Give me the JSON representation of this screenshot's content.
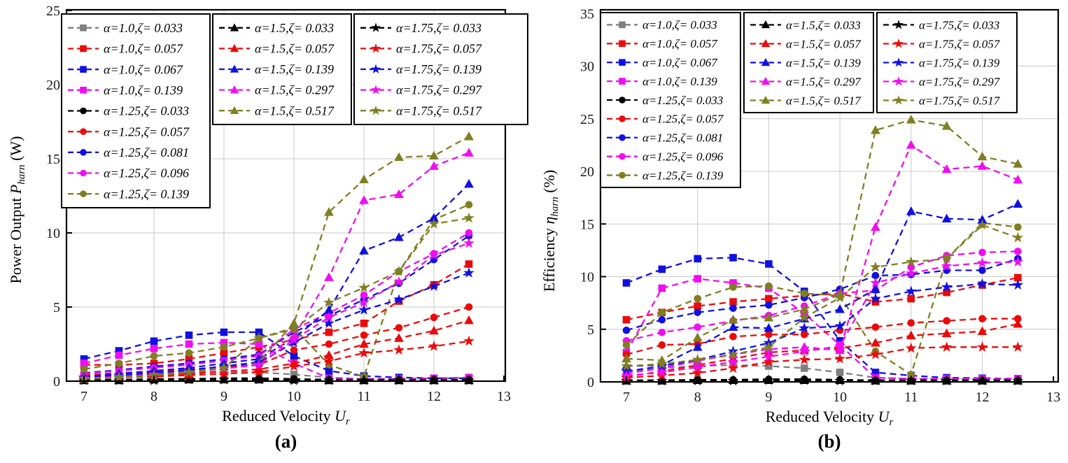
{
  "figure_name": "power-output-and-efficiency-vs-reduced-velocity",
  "chart_data": [
    {
      "type": "line",
      "caption": "(a)",
      "xlabel": {
        "text": "Reduced Velocity ",
        "symbol": "U",
        "subscript": "r",
        "unit": ""
      },
      "ylabel": {
        "text": "Power Output ",
        "symbol": "P",
        "subscript": "harn",
        "unit": " (W)"
      },
      "x_ticks": [
        7,
        8,
        9,
        10,
        11,
        12,
        13
      ],
      "y_ticks": [
        0,
        5,
        10,
        15,
        20,
        25
      ],
      "xlim": [
        6.75,
        13.02
      ],
      "ylim": [
        0,
        25
      ],
      "grid": "on",
      "legend_position": "top",
      "legend_groups": [
        [
          0,
          1,
          2,
          3,
          4,
          5,
          6,
          7,
          8
        ],
        [
          9,
          10,
          11,
          12,
          13
        ],
        [
          14,
          15,
          16,
          17,
          18
        ]
      ],
      "x": [
        7,
        7.5,
        8,
        8.5,
        9,
        9.5,
        10,
        10.5,
        11,
        11.5,
        12,
        12.5
      ],
      "series": [
        {
          "label": "α=1.0,ζ= 0.033",
          "color": "#7f7f7f",
          "marker": "square",
          "values": [
            0.3,
            0.45,
            0.55,
            0.6,
            0.65,
            0.6,
            0.45,
            0.25,
            0.15,
            0.15,
            0.15,
            0.15
          ]
        },
        {
          "label": "α=1.0,ζ= 0.057",
          "color": "#ea0b0b",
          "marker": "square",
          "values": [
            1.1,
            1.1,
            1.2,
            1.5,
            1.9,
            2.3,
            2.8,
            3.3,
            3.9,
            5.4,
            6.5,
            7.9
          ]
        },
        {
          "label": "α=1.0,ζ= 0.067",
          "color": "#1010e0",
          "marker": "square",
          "values": [
            1.5,
            2.05,
            2.7,
            3.1,
            3.3,
            3.3,
            1.7,
            0.7,
            0.35,
            0.25,
            0.2,
            0.2
          ]
        },
        {
          "label": "α=1.0,ζ= 0.139",
          "color": "#f00df0",
          "marker": "square",
          "values": [
            1.2,
            1.75,
            2.2,
            2.5,
            2.6,
            2.5,
            1.2,
            0.2,
            0.15,
            0.15,
            0.2,
            0.25
          ]
        },
        {
          "label": "α=1.25,ζ= 0.033",
          "color": "#000000",
          "marker": "circle",
          "values": [
            0.1,
            0.1,
            0.15,
            0.15,
            0.2,
            0.2,
            0.15,
            0.1,
            0.1,
            0.1,
            0.1,
            0.1
          ]
        },
        {
          "label": "α=1.25,ζ= 0.057",
          "color": "#ea0b0b",
          "marker": "circle",
          "values": [
            0.4,
            0.55,
            0.65,
            0.8,
            0.95,
            1.1,
            2.1,
            2.5,
            3.1,
            3.6,
            4.3,
            5.0
          ]
        },
        {
          "label": "α=1.25,ζ= 0.081",
          "color": "#1010e0",
          "marker": "circle",
          "values": [
            0.55,
            0.75,
            1.0,
            1.2,
            1.5,
            1.8,
            3.3,
            4.4,
            5.5,
            6.6,
            8.2,
            9.8
          ]
        },
        {
          "label": "α=1.25,ζ= 0.096",
          "color": "#f00df0",
          "marker": "circle",
          "values": [
            0.5,
            0.7,
            0.9,
            1.1,
            1.4,
            1.7,
            3.5,
            4.6,
            5.8,
            7.4,
            8.6,
            10.0
          ]
        },
        {
          "label": "α=1.25,ζ= 0.139",
          "color": "#7f7f22",
          "marker": "circle",
          "values": [
            0.8,
            1.2,
            1.7,
            1.9,
            2.3,
            2.9,
            3.6,
            1.1,
            0.3,
            7.4,
            10.9,
            11.9
          ]
        },
        {
          "label": "α=1.5,ζ= 0.033",
          "color": "#000000",
          "marker": "triangle",
          "values": [
            0.05,
            0.05,
            0.1,
            0.1,
            0.1,
            0.1,
            0.1,
            0.05,
            0.05,
            0.05,
            0.05,
            0.05
          ]
        },
        {
          "label": "α=1.5,ζ= 0.057",
          "color": "#ea0b0b",
          "marker": "triangle",
          "values": [
            0.2,
            0.3,
            0.4,
            0.5,
            0.65,
            0.8,
            1.2,
            1.75,
            2.5,
            2.9,
            3.4,
            4.1
          ]
        },
        {
          "label": "α=1.5,ζ= 0.139",
          "color": "#1010e0",
          "marker": "triangle",
          "values": [
            0.3,
            0.5,
            0.7,
            0.9,
            1.2,
            1.5,
            2.9,
            4.8,
            8.8,
            9.7,
            11.0,
            13.3
          ]
        },
        {
          "label": "α=1.5,ζ= 0.297",
          "color": "#f00df0",
          "marker": "triangle",
          "values": [
            0.2,
            0.35,
            0.5,
            0.75,
            1.0,
            1.3,
            3.0,
            7.0,
            12.2,
            12.6,
            14.5,
            15.4
          ]
        },
        {
          "label": "α=1.5,ζ= 0.517",
          "color": "#7f7f22",
          "marker": "triangle",
          "values": [
            0.15,
            0.3,
            0.45,
            0.7,
            1.0,
            1.3,
            3.9,
            11.4,
            13.6,
            15.1,
            15.2,
            16.5
          ]
        },
        {
          "label": "α=1.75,ζ= 0.033",
          "color": "#000000",
          "marker": "star",
          "values": [
            0.05,
            0.05,
            0.05,
            0.1,
            0.1,
            0.1,
            0.05,
            0.05,
            0.05,
            0.05,
            0.05,
            0.05
          ]
        },
        {
          "label": "α=1.75,ζ= 0.057",
          "color": "#ea0b0b",
          "marker": "star",
          "values": [
            0.15,
            0.25,
            0.3,
            0.4,
            0.5,
            0.6,
            1.0,
            1.35,
            1.9,
            2.1,
            2.35,
            2.7
          ]
        },
        {
          "label": "α=1.75,ζ= 0.139",
          "color": "#1010e0",
          "marker": "star",
          "values": [
            0.25,
            0.4,
            0.55,
            0.75,
            1.0,
            1.25,
            2.6,
            3.9,
            4.8,
            5.5,
            6.4,
            7.3
          ]
        },
        {
          "label": "α=1.75,ζ= 0.297",
          "color": "#f00df0",
          "marker": "star",
          "values": [
            0.2,
            0.3,
            0.45,
            0.6,
            0.85,
            1.1,
            2.8,
            4.3,
            5.3,
            6.7,
            8.5,
            9.3
          ]
        },
        {
          "label": "α=1.75,ζ= 0.517",
          "color": "#7f7f22",
          "marker": "star",
          "values": [
            0.15,
            0.25,
            0.4,
            0.6,
            0.9,
            2.9,
            3.5,
            5.3,
            6.3,
            7.4,
            10.6,
            11.0
          ]
        }
      ]
    },
    {
      "type": "line",
      "caption": "(b)",
      "xlabel": {
        "text": "Reduced Velocity ",
        "symbol": "U",
        "subscript": "r",
        "unit": ""
      },
      "ylabel": {
        "text": "Efficiency ",
        "symbol": "η",
        "subscript": "harn",
        "unit": " (%)"
      },
      "x_ticks": [
        7,
        8,
        9,
        10,
        11,
        12,
        13
      ],
      "y_ticks": [
        0,
        5,
        10,
        15,
        20,
        25,
        30,
        35
      ],
      "xlim": [
        6.65,
        13.07
      ],
      "ylim": [
        0,
        35
      ],
      "grid": "on",
      "legend_position": "top",
      "legend_groups": [
        [
          0,
          1,
          2,
          3,
          4,
          5,
          6,
          7,
          8
        ],
        [
          9,
          10,
          11,
          12,
          13
        ],
        [
          14,
          15,
          16,
          17,
          18
        ]
      ],
      "x": [
        7,
        7.5,
        8,
        8.5,
        9,
        9.5,
        10,
        10.5,
        11,
        11.5,
        12,
        12.5
      ],
      "series": [
        {
          "label": "α=1.0,ζ= 0.033",
          "color": "#7f7f7f",
          "marker": "square",
          "values": [
            1.0,
            1.3,
            1.5,
            1.6,
            1.5,
            1.3,
            0.9,
            0.4,
            0.3,
            0.3,
            0.25,
            0.25
          ]
        },
        {
          "label": "α=1.0,ζ= 0.057",
          "color": "#ea0b0b",
          "marker": "square",
          "values": [
            5.9,
            6.6,
            7.2,
            7.6,
            7.9,
            8.2,
            8.4,
            7.6,
            7.9,
            8.5,
            9.2,
            9.9
          ]
        },
        {
          "label": "α=1.0,ζ= 0.067",
          "color": "#1010e0",
          "marker": "square",
          "values": [
            9.4,
            10.7,
            11.7,
            11.8,
            11.2,
            8.6,
            3.9,
            0.9,
            0.6,
            0.4,
            0.35,
            0.3
          ]
        },
        {
          "label": "α=1.0,ζ= 0.139",
          "color": "#f00df0",
          "marker": "square",
          "values": [
            2.8,
            8.9,
            9.8,
            9.4,
            8.9,
            6.5,
            3.5,
            0.4,
            0.3,
            0.3,
            0.3,
            0.3
          ]
        },
        {
          "label": "α=1.25,ζ= 0.033",
          "color": "#000000",
          "marker": "circle",
          "values": [
            0.15,
            0.15,
            0.2,
            0.2,
            0.25,
            0.25,
            0.2,
            0.15,
            0.15,
            0.15,
            0.15,
            0.15
          ]
        },
        {
          "label": "α=1.25,ζ= 0.057",
          "color": "#ea0b0b",
          "marker": "circle",
          "values": [
            2.6,
            3.5,
            3.6,
            4.3,
            4.5,
            4.5,
            4.9,
            5.2,
            5.6,
            5.8,
            6.0,
            6.0
          ]
        },
        {
          "label": "α=1.25,ζ= 0.081",
          "color": "#1010e0",
          "marker": "circle",
          "values": [
            4.9,
            5.9,
            6.6,
            7.0,
            7.3,
            8.0,
            8.8,
            10.1,
            10.2,
            10.6,
            10.6,
            11.7
          ]
        },
        {
          "label": "α=1.25,ζ= 0.096",
          "color": "#f00df0",
          "marker": "circle",
          "values": [
            3.9,
            4.7,
            5.2,
            5.8,
            6.3,
            7.2,
            8.4,
            8.7,
            10.9,
            12.0,
            12.3,
            12.4
          ]
        },
        {
          "label": "α=1.25,ζ= 0.139",
          "color": "#7f7f22",
          "marker": "circle",
          "values": [
            3.5,
            6.6,
            7.9,
            9.0,
            9.1,
            8.4,
            8.2,
            2.9,
            0.7,
            11.7,
            15.1,
            14.7
          ]
        },
        {
          "label": "α=1.5,ζ= 0.033",
          "color": "#000000",
          "marker": "triangle",
          "values": [
            0.1,
            0.1,
            0.15,
            0.15,
            0.15,
            0.15,
            0.15,
            0.1,
            0.1,
            0.1,
            0.1,
            0.1
          ]
        },
        {
          "label": "α=1.5,ζ= 0.057",
          "color": "#ea0b0b",
          "marker": "triangle",
          "values": [
            0.5,
            1.0,
            1.6,
            2.2,
            2.8,
            3.0,
            3.2,
            3.7,
            4.4,
            4.6,
            4.8,
            5.5
          ]
        },
        {
          "label": "α=1.5,ζ= 0.139",
          "color": "#1010e0",
          "marker": "triangle",
          "values": [
            1.5,
            1.6,
            3.3,
            5.2,
            5.1,
            6.0,
            6.9,
            8.8,
            16.2,
            15.5,
            15.4,
            16.9
          ]
        },
        {
          "label": "α=1.5,ζ= 0.297",
          "color": "#f00df0",
          "marker": "triangle",
          "values": [
            0.8,
            1.3,
            2.0,
            2.6,
            3.1,
            3.3,
            3.0,
            14.7,
            22.5,
            20.2,
            20.5,
            19.2
          ]
        },
        {
          "label": "α=1.5,ζ= 0.517",
          "color": "#7f7f22",
          "marker": "triangle",
          "values": [
            2.2,
            2.05,
            4.2,
            5.9,
            6.1,
            6.9,
            8.3,
            23.9,
            24.9,
            24.3,
            21.4,
            20.7
          ]
        },
        {
          "label": "α=1.75,ζ= 0.033",
          "color": "#000000",
          "marker": "star",
          "values": [
            0.1,
            0.1,
            0.1,
            0.1,
            0.15,
            0.15,
            0.1,
            0.1,
            0.1,
            0.1,
            0.1,
            0.1
          ]
        },
        {
          "label": "α=1.75,ζ= 0.057",
          "color": "#ea0b0b",
          "marker": "star",
          "values": [
            0.4,
            0.6,
            0.85,
            1.3,
            1.9,
            2.1,
            2.2,
            2.6,
            3.2,
            3.3,
            3.3,
            3.3
          ]
        },
        {
          "label": "α=1.75,ζ= 0.139",
          "color": "#1010e0",
          "marker": "star",
          "values": [
            1.0,
            1.5,
            2.1,
            2.9,
            3.7,
            5.1,
            5.3,
            7.9,
            8.6,
            9.0,
            9.3,
            9.2
          ]
        },
        {
          "label": "α=1.75,ζ= 0.297",
          "color": "#f00df0",
          "marker": "star",
          "values": [
            0.6,
            0.9,
            1.4,
            1.9,
            2.4,
            2.9,
            3.4,
            9.4,
            10.3,
            11.0,
            11.3,
            11.4
          ]
        },
        {
          "label": "α=1.75,ζ= 0.517",
          "color": "#7f7f22",
          "marker": "star",
          "values": [
            1.5,
            1.7,
            2.1,
            2.6,
            3.3,
            6.1,
            8.0,
            10.9,
            11.4,
            11.7,
            14.9,
            13.7
          ]
        }
      ]
    }
  ]
}
